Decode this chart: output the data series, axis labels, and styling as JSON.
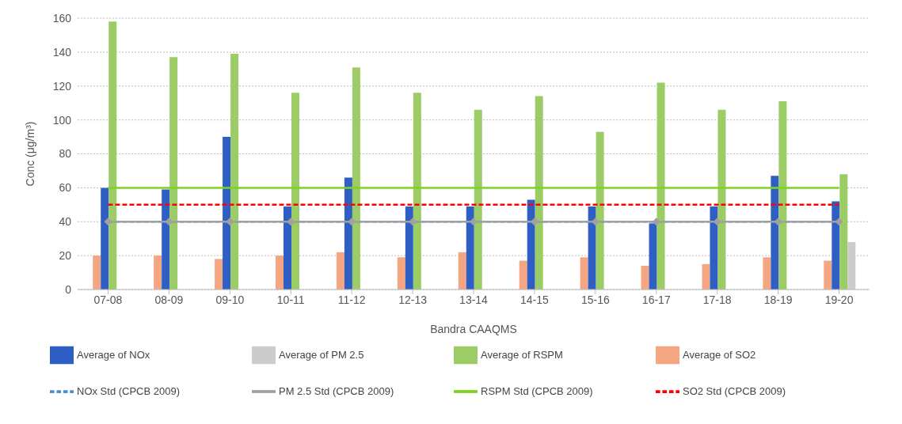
{
  "chart_data": {
    "type": "bar",
    "xlabel": "Bandra CAAQMS",
    "ylabel": "Conc (μg/m³)",
    "categories": [
      "07-08",
      "08-09",
      "09-10",
      "10-11",
      "11-12",
      "12-13",
      "13-14",
      "14-15",
      "15-16",
      "16-17",
      "17-18",
      "18-19",
      "19-20"
    ],
    "series": [
      {
        "name": "Average of SO2",
        "color": "#f4a582",
        "values": [
          20,
          20,
          18,
          20,
          22,
          19,
          22,
          17,
          19,
          14,
          15,
          19,
          17
        ]
      },
      {
        "name": "Average of NOx",
        "color": "#2f5fc4",
        "values": [
          60,
          59,
          90,
          49,
          66,
          49,
          49,
          53,
          49,
          39,
          49,
          67,
          52
        ]
      },
      {
        "name": "Average of RSPM",
        "color": "#9ccc65",
        "values": [
          158,
          137,
          139,
          116,
          131,
          116,
          106,
          114,
          93,
          122,
          106,
          111,
          68
        ]
      },
      {
        "name": "Average of PM 2.5",
        "color": "#cccccc",
        "values": [
          null,
          null,
          null,
          null,
          null,
          null,
          null,
          null,
          null,
          null,
          null,
          null,
          28
        ]
      },
      {
        "name": "SO2 Std (CPCB 2009)",
        "type": "line",
        "color": "#ff0000",
        "line_style": "dashed",
        "values": [
          50,
          50,
          50,
          50,
          50,
          50,
          50,
          50,
          50,
          50,
          50,
          50,
          50
        ]
      },
      {
        "name": "NOx Std (CPCB 2009)",
        "type": "line",
        "color": "#4a8fd4",
        "line_style": "dashed",
        "values": [
          40,
          40,
          40,
          40,
          40,
          40,
          40,
          40,
          40,
          40,
          40,
          40,
          40
        ]
      },
      {
        "name": "RSPM Std (CPCB 2009)",
        "type": "line",
        "color": "#7ed321",
        "line_style": "solid",
        "values": [
          60,
          60,
          60,
          60,
          60,
          60,
          60,
          60,
          60,
          60,
          60,
          60,
          60
        ]
      },
      {
        "name": "PM 2.5 Std (CPCB 2009)",
        "type": "line",
        "color": "#a0a0a0",
        "line_style": "solid",
        "marker": "diamond",
        "values": [
          40,
          40,
          40,
          40,
          40,
          40,
          40,
          40,
          40,
          40,
          40,
          40,
          40
        ]
      }
    ],
    "ylim": [
      0,
      160
    ],
    "yticks": [
      0,
      20,
      40,
      60,
      80,
      100,
      120,
      140,
      160
    ],
    "grid": "y",
    "legend": "bottom"
  }
}
